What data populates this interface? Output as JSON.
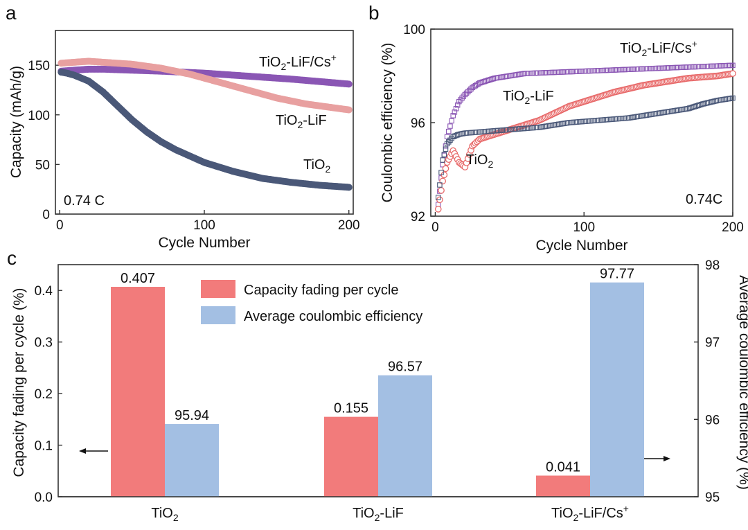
{
  "panels": {
    "a": "a",
    "b": "b",
    "c": "c"
  },
  "chart_data": [
    {
      "type": "scatter",
      "panel": "a",
      "xlabel": "Cycle Number",
      "ylabel": "Capacity (mAh/g)",
      "xlim": [
        -3,
        203
      ],
      "ylim": [
        0,
        185
      ],
      "xticks": [
        0,
        100,
        200
      ],
      "yticks": [
        0,
        50,
        100,
        150
      ],
      "annotation": "0.74 C",
      "series": [
        {
          "name": "TiO2-LiF/Cs+",
          "label_main": "TiO",
          "label_sub": "2",
          "label_rest": "-LiF/Cs",
          "label_sup": "+",
          "color": "#8a56b4",
          "x": [
            1,
            10,
            20,
            30,
            50,
            70,
            100,
            130,
            160,
            200
          ],
          "y": [
            144,
            145,
            146,
            146,
            145,
            144,
            142,
            139,
            136,
            131
          ]
        },
        {
          "name": "TiO2-LiF",
          "label_main": "TiO",
          "label_sub": "2",
          "label_rest": "-LiF",
          "color": "#e8a0a0",
          "x": [
            1,
            10,
            20,
            30,
            50,
            70,
            90,
            110,
            130,
            150,
            170,
            190,
            200
          ],
          "y": [
            152,
            153,
            154,
            153,
            151,
            147,
            141,
            133,
            125,
            117,
            111,
            107,
            105
          ]
        },
        {
          "name": "TiO2",
          "label_main": "TiO",
          "label_sub": "2",
          "color": "#4a5878",
          "x": [
            1,
            5,
            10,
            20,
            30,
            40,
            50,
            60,
            70,
            80,
            100,
            120,
            140,
            160,
            180,
            200
          ],
          "y": [
            143,
            142,
            140,
            134,
            123,
            109,
            95,
            83,
            73,
            65,
            52,
            43,
            36,
            32,
            29,
            27
          ]
        }
      ]
    },
    {
      "type": "scatter",
      "panel": "b",
      "xlabel": "Cycle Number",
      "ylabel": "Coulombic efficiency (%)",
      "xlim": [
        -3,
        200
      ],
      "ylim": [
        92,
        100
      ],
      "xticks": [
        0,
        100,
        200
      ],
      "yticks": [
        92,
        96,
        100
      ],
      "annotation": "0.74C",
      "series": [
        {
          "name": "TiO2-LiF/Cs+",
          "label_main": "TiO",
          "label_sub": "2",
          "label_rest": "-LiF/Cs",
          "label_sup": "+",
          "color": "#8a56b4",
          "x": [
            2,
            5,
            8,
            12,
            16,
            20,
            25,
            30,
            40,
            50,
            60,
            80,
            100,
            120,
            140,
            160,
            180,
            200
          ],
          "y": [
            92.5,
            94.2,
            95.4,
            96.3,
            96.9,
            97.2,
            97.5,
            97.7,
            97.9,
            98.0,
            98.1,
            98.15,
            98.2,
            98.25,
            98.3,
            98.35,
            98.4,
            98.45
          ]
        },
        {
          "name": "TiO2-LiF",
          "label_main": "TiO",
          "label_sub": "2",
          "label_rest": "-LiF",
          "color": "#e86a6a",
          "x": [
            2,
            5,
            8,
            12,
            16,
            20,
            25,
            30,
            40,
            50,
            60,
            70,
            80,
            90,
            100,
            110,
            120,
            130,
            140,
            150,
            160,
            170,
            180,
            190,
            200
          ],
          "y": [
            92.3,
            93.5,
            94.3,
            94.8,
            94.3,
            94.1,
            95.0,
            95.3,
            95.5,
            95.7,
            95.9,
            96.1,
            96.4,
            96.7,
            96.9,
            97.1,
            97.3,
            97.45,
            97.6,
            97.7,
            97.8,
            97.9,
            97.95,
            98.0,
            98.1
          ]
        },
        {
          "name": "TiO2",
          "label_main": "TiO",
          "label_sub": "2",
          "color": "#4a5878",
          "x": [
            2,
            5,
            8,
            12,
            16,
            20,
            30,
            40,
            50,
            60,
            70,
            80,
            90,
            100,
            110,
            120,
            130,
            140,
            150,
            160,
            170,
            180,
            190,
            200
          ],
          "y": [
            92.8,
            94.4,
            95.1,
            95.4,
            95.5,
            95.55,
            95.6,
            95.65,
            95.7,
            95.75,
            95.8,
            95.9,
            96.0,
            96.05,
            96.1,
            96.15,
            96.2,
            96.3,
            96.4,
            96.5,
            96.6,
            96.8,
            96.95,
            97.05
          ]
        }
      ]
    },
    {
      "type": "bar",
      "panel": "c",
      "categories": [
        {
          "main": "TiO",
          "sub": "2",
          "rest": ""
        },
        {
          "main": "TiO",
          "sub": "2",
          "rest": "-LiF"
        },
        {
          "main": "TiO",
          "sub": "2",
          "rest": "-LiF/Cs",
          "sup": "+"
        }
      ],
      "ylabel_left": "Capacity fading per cycle (%)",
      "ylabel_right": "Average coulombic efficiency (%)",
      "ylim_left": [
        0,
        0.45
      ],
      "yticks_left": [
        "0.0",
        "0.1",
        "0.2",
        "0.3",
        "0.4"
      ],
      "ylim_right": [
        95,
        98
      ],
      "yticks_right": [
        "95",
        "96",
        "97",
        "98"
      ],
      "legend_position": "top-center",
      "series": [
        {
          "name": "Capacity fading per cycle",
          "axis": "left",
          "color": "#f27b7b",
          "values": [
            0.407,
            0.155,
            0.041
          ],
          "labels": [
            "0.407",
            "0.155",
            "0.041"
          ]
        },
        {
          "name": "Average coulombic efficiency",
          "axis": "right",
          "color": "#a3bfe3",
          "values": [
            95.94,
            96.57,
            97.77
          ],
          "labels": [
            "95.94",
            "96.57",
            "97.77"
          ]
        }
      ]
    }
  ]
}
